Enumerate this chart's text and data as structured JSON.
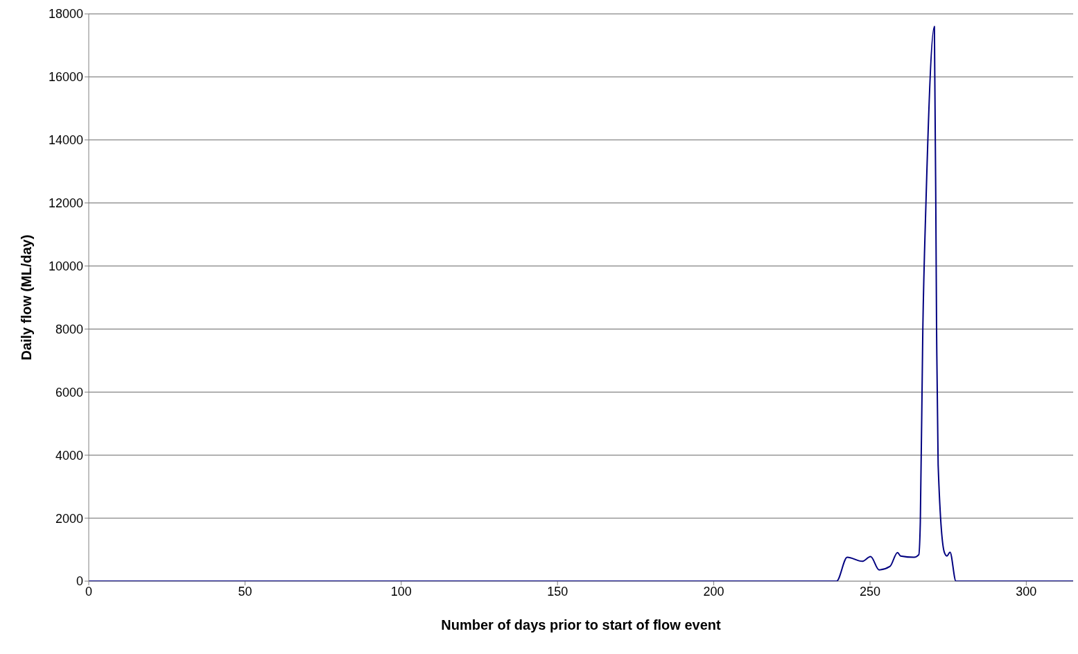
{
  "chart_data": {
    "type": "line",
    "xlabel": "Number of days prior to start of flow event",
    "ylabel": "Daily flow (ML/day)",
    "x": [
      0,
      100,
      200,
      230,
      239.3,
      242.7,
      247.5,
      250.2,
      252.9,
      256.4,
      258.8,
      259.8,
      264.1,
      265.6,
      266.1,
      266.9,
      267.9,
      270.6,
      271.3,
      271.8,
      273.8,
      274.6,
      275.6,
      277.5,
      290,
      315
    ],
    "series": [
      {
        "color": "#000080",
        "values": [
          0,
          0,
          0,
          0,
          0,
          760,
          630,
          780,
          360,
          470,
          910,
          800,
          760,
          840,
          1900,
          8000,
          12000,
          17600,
          8000,
          3700,
          910,
          800,
          920,
          0,
          0,
          0
        ]
      }
    ],
    "xlim": [
      0,
      315
    ],
    "xticks": [
      0,
      50,
      100,
      150,
      200,
      250,
      300
    ],
    "ylim": [
      0,
      18000
    ],
    "yticks": [
      0,
      2000,
      4000,
      6000,
      8000,
      10000,
      12000,
      14000,
      16000,
      18000
    ],
    "grid": "y",
    "legend": false,
    "marker": "none",
    "line_style": "solid"
  }
}
